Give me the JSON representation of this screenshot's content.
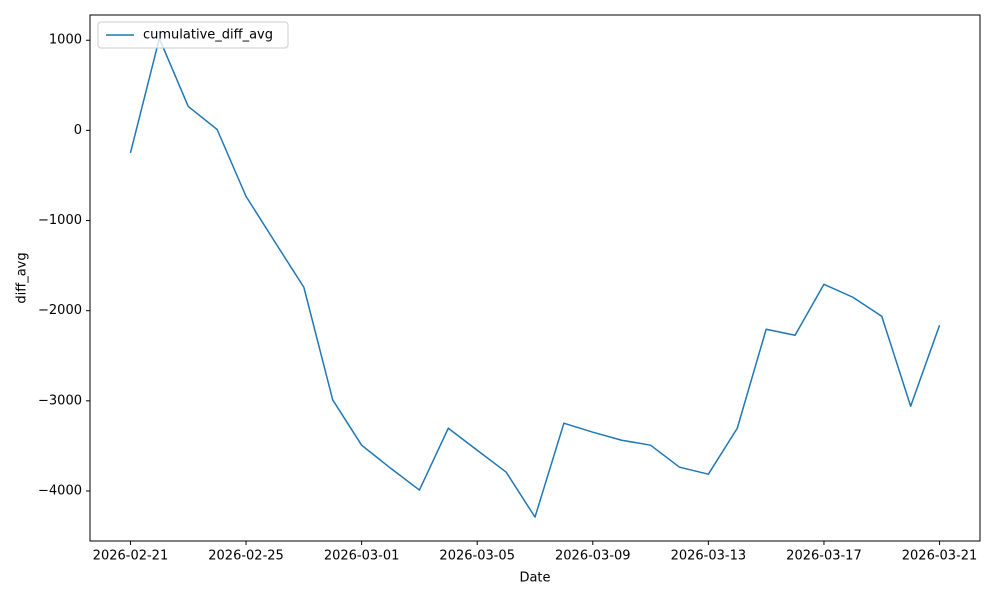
{
  "chart_data": {
    "type": "line",
    "xlabel": "Date",
    "ylabel": "diff_avg",
    "x": [
      "2026-02-21",
      "2026-02-22",
      "2026-02-23",
      "2026-02-24",
      "2026-02-25",
      "2026-02-26",
      "2026-02-27",
      "2026-02-28",
      "2026-03-01",
      "2026-03-02",
      "2026-03-03",
      "2026-03-04",
      "2026-03-05",
      "2026-03-06",
      "2026-03-07",
      "2026-03-08",
      "2026-03-09",
      "2026-03-10",
      "2026-03-11",
      "2026-03-12",
      "2026-03-13",
      "2026-03-14",
      "2026-03-15",
      "2026-03-16",
      "2026-03-17",
      "2026-03-18",
      "2026-03-19",
      "2026-03-20",
      "2026-03-21"
    ],
    "series": [
      {
        "name": "cumulative_diff_avg",
        "color": "#1f77b4",
        "values": [
          -250,
          1020,
          266,
          10,
          -732,
          -1238,
          -1740,
          -2990,
          -3492,
          -3747,
          -3990,
          -3304,
          -3548,
          -3790,
          -4290,
          -3248,
          -3348,
          -3437,
          -3492,
          -3736,
          -3814,
          -3304,
          -2206,
          -2273,
          -1707,
          -1851,
          -2062,
          -3060,
          -2162
        ]
      }
    ],
    "xlim": [
      "2026-02-19T14:24:00Z",
      "2026-03-22T09:36:00Z"
    ],
    "xticks": [
      "2026-02-21",
      "2026-02-25",
      "2026-03-01",
      "2026-03-05",
      "2026-03-09",
      "2026-03-13",
      "2026-03-17",
      "2026-03-21"
    ],
    "ylim": [
      -4555,
      1280
    ],
    "yticks": [
      {
        "value": -4000,
        "label": "−4000"
      },
      {
        "value": -3000,
        "label": "−3000"
      },
      {
        "value": -2000,
        "label": "−2000"
      },
      {
        "value": -1000,
        "label": "−1000"
      },
      0,
      1000
    ],
    "legend": "upper left",
    "grid": false
  }
}
